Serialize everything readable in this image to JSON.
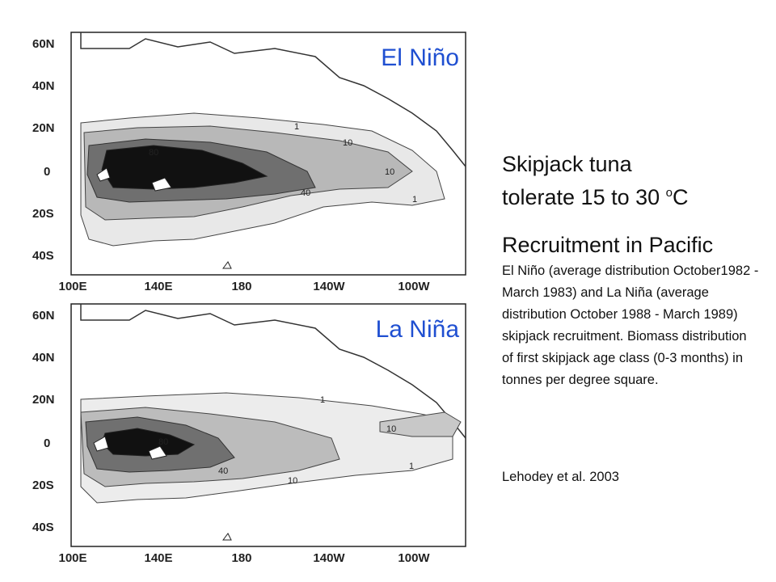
{
  "maps": [
    {
      "title": "El Niño",
      "lat_labels": [
        "60N",
        "40N",
        "20N",
        "0",
        "20S",
        "40S"
      ],
      "lon_labels": [
        "100E",
        "140E",
        "180",
        "140W",
        "100W"
      ],
      "contour_labels": [
        "80",
        "40",
        "10",
        "1",
        "10",
        "1"
      ]
    },
    {
      "title": "La Niña",
      "lat_labels": [
        "60N",
        "40N",
        "20N",
        "0",
        "20S",
        "40S"
      ],
      "lon_labels": [
        "100E",
        "140E",
        "180",
        "140W",
        "100W"
      ],
      "contour_labels": [
        "80",
        "40",
        "10",
        "1",
        "10",
        "1"
      ]
    }
  ],
  "side": {
    "line1": "Skipjack tuna",
    "line2_pre": "tolerate 15 to 30 ",
    "line2_sup": "o",
    "line2_post": "C",
    "heading": "Recruitment in Pacific",
    "caption": "El Niño (average distribution October1982 - March 1983) and La Niña (average distribution October 1988 - March 1989) skipjack recruitment. Biomass distribution of first skipjack age class (0-3 months) in tonnes per degree square.",
    "citation": "Lehodey et al. 2003"
  },
  "colors": {
    "title": "#1f4fd1",
    "darkest": "#0a0a0a",
    "dark": "#3a3a3a",
    "mid": "#8a8a8a",
    "light": "#cfcfcf",
    "ocean": "#ffffff"
  }
}
